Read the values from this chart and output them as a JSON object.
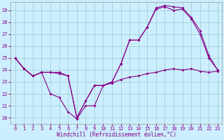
{
  "xlabel": "Windchill (Refroidissement éolien,°C)",
  "background_color": "#cceeff",
  "line_color": "#880088",
  "grid_color": "#99cccc",
  "ylim": [
    19.5,
    29.7
  ],
  "xlim": [
    -0.5,
    23.5
  ],
  "yticks": [
    20,
    21,
    22,
    23,
    24,
    25,
    26,
    27,
    28,
    29
  ],
  "xticks": [
    0,
    1,
    2,
    3,
    4,
    5,
    6,
    7,
    8,
    9,
    10,
    11,
    12,
    13,
    14,
    15,
    16,
    17,
    18,
    19,
    20,
    21,
    22,
    23
  ],
  "line1_x": [
    0,
    1,
    2,
    3,
    4,
    5,
    6,
    7,
    8,
    9,
    10,
    11,
    12,
    13,
    14,
    15,
    16,
    17,
    18,
    19,
    20,
    21,
    22,
    23
  ],
  "line1_y": [
    25.0,
    24.1,
    23.5,
    23.8,
    22.0,
    21.7,
    20.5,
    19.9,
    21.0,
    21.0,
    22.7,
    22.9,
    23.2,
    23.4,
    23.5,
    23.7,
    23.8,
    24.0,
    24.1,
    24.0,
    24.1,
    23.9,
    23.8,
    23.9
  ],
  "line2_x": [
    0,
    1,
    2,
    3,
    4,
    5,
    6,
    7,
    8,
    9,
    10,
    11,
    12,
    13,
    14,
    15,
    16,
    17,
    18,
    19,
    20,
    21,
    22,
    23
  ],
  "line2_y": [
    25.0,
    24.1,
    23.5,
    23.8,
    23.8,
    23.7,
    23.5,
    20.0,
    21.4,
    22.7,
    22.7,
    23.0,
    24.5,
    26.5,
    26.5,
    27.6,
    29.1,
    29.3,
    29.0,
    29.1,
    28.3,
    27.0,
    25.0,
    24.0
  ],
  "line3_x": [
    0,
    1,
    2,
    3,
    4,
    5,
    6,
    7,
    8,
    9,
    10,
    11,
    12,
    13,
    14,
    15,
    16,
    17,
    18,
    19,
    20,
    21,
    22,
    23
  ],
  "line3_y": [
    25.0,
    24.1,
    23.5,
    23.8,
    23.8,
    23.8,
    23.5,
    20.0,
    21.4,
    22.7,
    22.7,
    23.0,
    24.5,
    26.5,
    26.5,
    27.6,
    29.2,
    29.4,
    29.3,
    29.2,
    28.4,
    27.3,
    25.2,
    24.0
  ]
}
